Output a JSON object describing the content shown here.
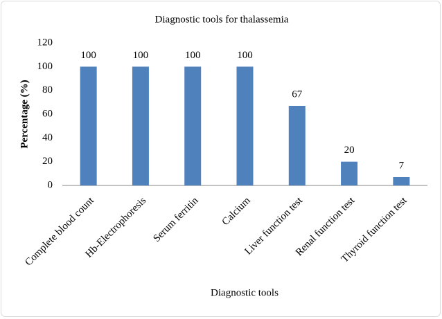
{
  "chart_data": {
    "type": "bar",
    "title": "Diagnostic tools for thalassemia",
    "x_label": "Diagnostic tools",
    "y_label": "Percentage (%)",
    "categories": [
      "Complete blood count",
      "Hb-Electrophoresis",
      "Serum ferritin",
      "Calcium",
      "Liver function test",
      "Renal function test",
      "Thyroid function test"
    ],
    "values": [
      100,
      100,
      100,
      100,
      67,
      20,
      7
    ],
    "color": "#4f81bd",
    "ylim": [
      0,
      120
    ],
    "yticks": [
      0,
      20,
      40,
      60,
      80,
      100,
      120
    ],
    "grid": false
  }
}
